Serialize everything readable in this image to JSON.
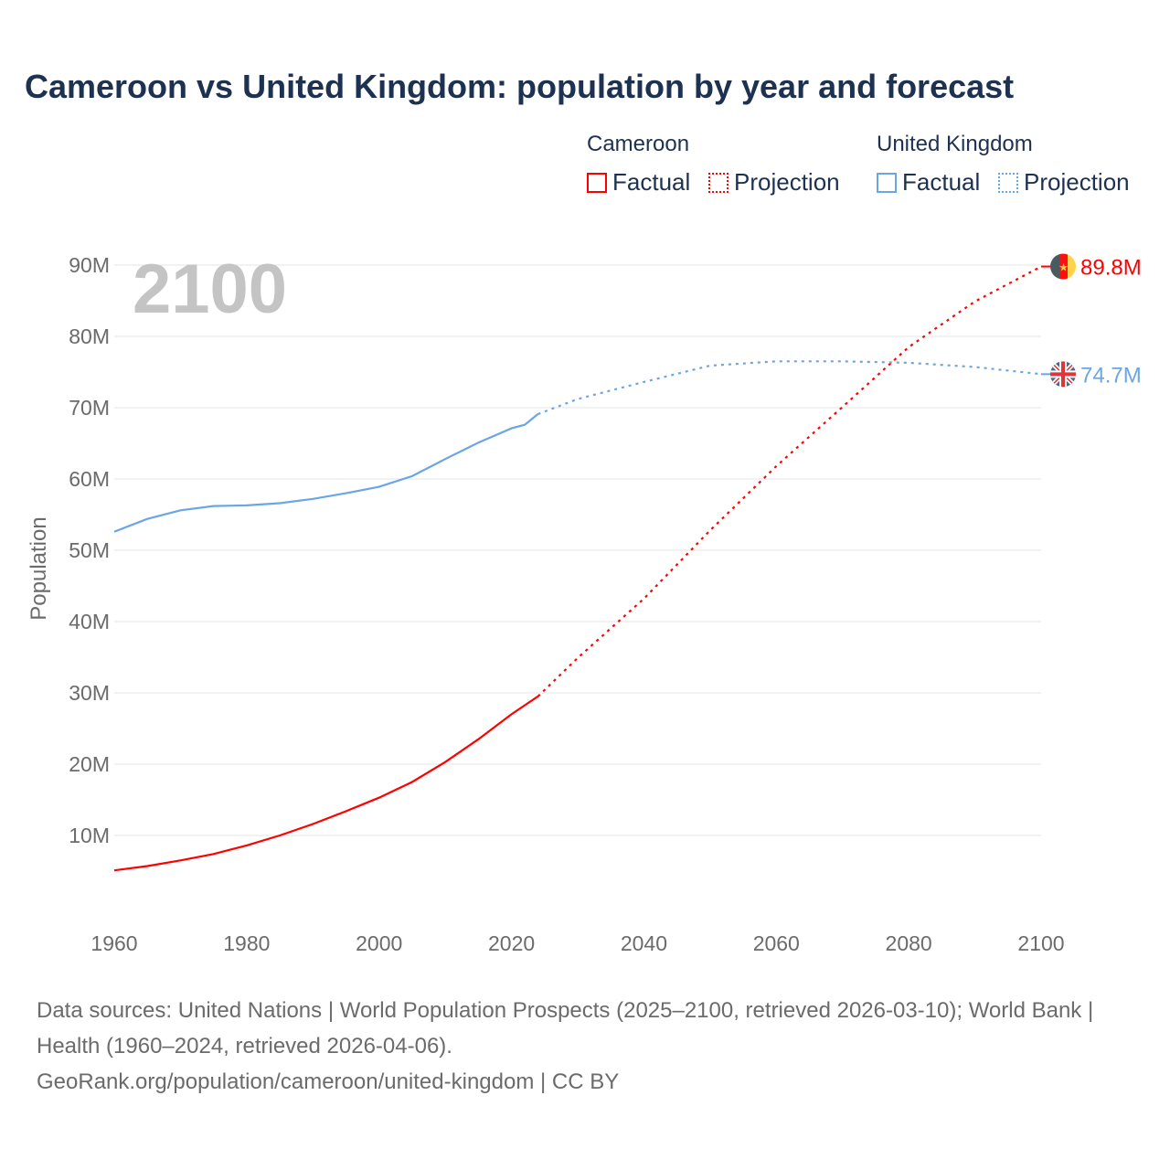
{
  "chart_data": {
    "type": "line",
    "title": "Cameroon vs United Kingdom: population by year and forecast",
    "xlabel": "",
    "ylabel": "Population",
    "xlim": [
      1960,
      2100
    ],
    "ylim": [
      0,
      90000000
    ],
    "x_ticks": [
      "1960",
      "1980",
      "2000",
      "2020",
      "2040",
      "2060",
      "2080",
      "2100"
    ],
    "y_ticks": [
      "10M",
      "20M",
      "30M",
      "40M",
      "50M",
      "60M",
      "70M",
      "80M",
      "90M"
    ],
    "grid": true,
    "year_watermark": "2100",
    "legend": {
      "placement": "top-right",
      "groups": [
        {
          "name": "Cameroon",
          "factual": "Factual",
          "projection": "Projection"
        },
        {
          "name": "United Kingdom",
          "factual": "Factual",
          "projection": "Projection"
        }
      ]
    },
    "series": [
      {
        "name": "Cameroon",
        "color": "#ff0000",
        "end_label": "89.8M",
        "factual": {
          "x": [
            1960,
            1965,
            1970,
            1975,
            1980,
            1985,
            1990,
            1995,
            2000,
            2005,
            2010,
            2015,
            2020,
            2024
          ],
          "y": [
            5.1,
            5.7,
            6.5,
            7.4,
            8.6,
            10.0,
            11.6,
            13.4,
            15.3,
            17.5,
            20.3,
            23.5,
            27.0,
            29.5
          ]
        },
        "projection": {
          "x": [
            2024,
            2030,
            2040,
            2050,
            2060,
            2070,
            2080,
            2090,
            2100
          ],
          "y": [
            29.5,
            34.9,
            43.2,
            52.8,
            61.8,
            70.1,
            78.5,
            84.9,
            89.8
          ]
        }
      },
      {
        "name": "United Kingdom",
        "color": "#6aa6e6",
        "end_label": "74.7M",
        "factual": {
          "x": [
            1960,
            1965,
            1970,
            1975,
            1980,
            1985,
            1990,
            1995,
            2000,
            2005,
            2010,
            2015,
            2020,
            2022,
            2024
          ],
          "y": [
            52.6,
            54.4,
            55.6,
            56.2,
            56.3,
            56.6,
            57.2,
            58.0,
            58.9,
            60.4,
            62.8,
            65.1,
            67.1,
            67.6,
            69.1
          ]
        },
        "projection": {
          "x": [
            2024,
            2030,
            2040,
            2050,
            2060,
            2070,
            2080,
            2090,
            2100
          ],
          "y": [
            69.1,
            71.2,
            73.6,
            75.9,
            76.5,
            76.5,
            76.3,
            75.7,
            74.7
          ]
        }
      }
    ],
    "y_unit": "millions"
  },
  "sources": {
    "line1": "Data sources: United Nations | World Population Prospects (2025–2100, retrieved 2026-03-10); World Bank | Health (1960–2024, retrieved 2026-04-06).",
    "line2": "GeoRank.org/population/cameroon/united-kingdom | CC BY"
  }
}
